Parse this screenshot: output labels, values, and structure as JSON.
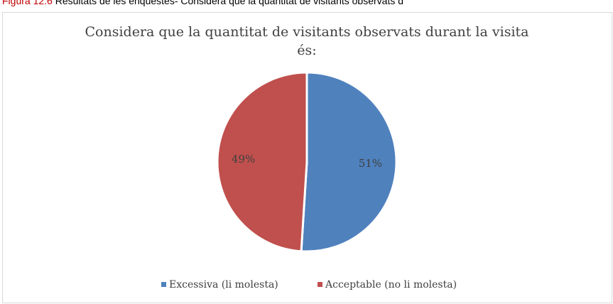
{
  "caption": {
    "figure": "Figura 12.6",
    "text": "Resultats de les enquestes- Considera que la quantitat de visitants observats d"
  },
  "chart_data": {
    "type": "pie",
    "title_lines": [
      "Considera que la quantitat de visitants observats durant la visita",
      "és:"
    ],
    "categories": [
      "Excessiva (li molesta)",
      "Acceptable (no li molesta)"
    ],
    "values": [
      51,
      49
    ],
    "value_labels": [
      "51%",
      "49%"
    ],
    "colors": [
      "#4f81bd",
      "#c0504d"
    ],
    "legend": "bottom"
  }
}
